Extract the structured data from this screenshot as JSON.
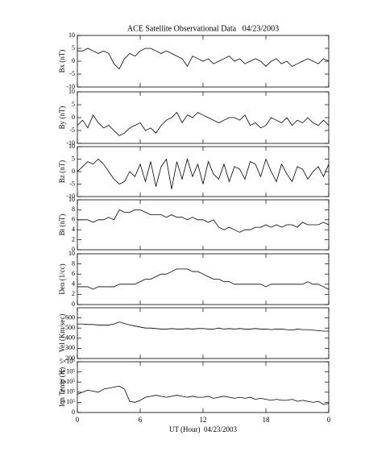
{
  "chart_data": [
    {
      "type": "line",
      "title": "ACE Satellite Observational Data   04/23/2003",
      "ylabel": "Bx (nT)",
      "color": "#000000",
      "x": [
        0,
        0.5,
        1,
        1.5,
        2,
        2.5,
        3,
        3.5,
        4,
        4.5,
        5,
        5.5,
        6,
        6.5,
        7,
        7.5,
        8,
        8.5,
        9,
        9.5,
        10,
        10.5,
        11,
        11.5,
        12,
        12.5,
        13,
        13.5,
        14,
        14.5,
        15,
        15.5,
        16,
        16.5,
        17,
        17.5,
        18,
        18.5,
        19,
        19.5,
        20,
        20.5,
        21,
        21.5,
        22,
        22.5,
        23,
        23.5,
        24
      ],
      "values": [
        4,
        4,
        5,
        4,
        3,
        4,
        3,
        -1,
        -3,
        1,
        3,
        2,
        4,
        5,
        5,
        4,
        3,
        4,
        3,
        2,
        1,
        -2,
        2,
        1,
        0,
        1,
        -1,
        0,
        1,
        2,
        0,
        1,
        -1,
        0,
        1,
        0,
        -2,
        0,
        1,
        -1,
        0,
        -2,
        -1,
        0,
        1,
        0,
        -1,
        1,
        0
      ],
      "xlim": [
        0,
        24
      ],
      "xticks": [
        0,
        6,
        12,
        18,
        {
          "value": 24,
          "label": "0"
        }
      ],
      "ylim": [
        -10,
        10
      ],
      "yticks": [
        -10,
        -5,
        0,
        5,
        10
      ]
    },
    {
      "type": "line",
      "ylabel": "By (nT)",
      "color": "#000000",
      "x": [
        0,
        0.5,
        1,
        1.5,
        2,
        2.5,
        3,
        3.5,
        4,
        4.5,
        5,
        5.5,
        6,
        6.5,
        7,
        7.5,
        8,
        8.5,
        9,
        9.5,
        10,
        10.5,
        11,
        11.5,
        12,
        12.5,
        13,
        13.5,
        14,
        14.5,
        15,
        15.5,
        16,
        16.5,
        17,
        17.5,
        18,
        18.5,
        19,
        19.5,
        20,
        20.5,
        21,
        21.5,
        22,
        22.5,
        23,
        23.5,
        24
      ],
      "values": [
        -3,
        -1,
        -4,
        1,
        -2,
        -4,
        -3,
        -5,
        -7,
        -6,
        -4,
        -3,
        -2,
        -5,
        -4,
        -6,
        -3,
        -1,
        0,
        2,
        -2,
        1,
        0,
        2,
        1,
        0,
        -1,
        -2,
        -1,
        0,
        0,
        -1,
        1,
        -3,
        -2,
        -4,
        -3,
        0,
        -1,
        -2,
        0,
        -3,
        -1,
        -2,
        0,
        -2,
        -3,
        -1,
        -3
      ],
      "xlim": [
        0,
        24
      ],
      "xticks": [
        0,
        6,
        12,
        18,
        {
          "value": 24,
          "label": "0"
        }
      ],
      "ylim": [
        -10,
        10
      ],
      "yticks": [
        -10,
        -5,
        0,
        5,
        10
      ]
    },
    {
      "type": "line",
      "ylabel": "Bz (nT)",
      "color": "#000000",
      "x": [
        0,
        0.5,
        1,
        1.5,
        2,
        2.5,
        3,
        3.5,
        4,
        4.5,
        5,
        5.5,
        6,
        6.5,
        7,
        7.5,
        8,
        8.5,
        9,
        9.5,
        10,
        10.5,
        11,
        11.5,
        12,
        12.5,
        13,
        13.5,
        14,
        14.5,
        15,
        15.5,
        16,
        16.5,
        17,
        17.5,
        18,
        18.5,
        19,
        19.5,
        20,
        20.5,
        21,
        21.5,
        22,
        22.5,
        23,
        23.5,
        24
      ],
      "values": [
        0,
        2,
        4,
        3,
        5,
        3,
        0,
        -3,
        -5,
        -4,
        0,
        -2,
        3,
        -4,
        4,
        -6,
        2,
        5,
        -7,
        4,
        -3,
        5,
        -2,
        3,
        -5,
        4,
        -1,
        -3,
        3,
        -4,
        2,
        1,
        -3,
        4,
        3,
        -2,
        5,
        0,
        -4,
        3,
        -1,
        -4,
        2,
        1,
        -3,
        0,
        2,
        -2,
        3
      ],
      "xlim": [
        0,
        24
      ],
      "xticks": [
        0,
        6,
        12,
        18,
        {
          "value": 24,
          "label": "0"
        }
      ],
      "ylim": [
        -10,
        10
      ],
      "yticks": [
        -10,
        -5,
        0,
        5,
        10
      ]
    },
    {
      "type": "line",
      "ylabel": "Bt (nT)",
      "color": "#000000",
      "x": [
        0,
        0.5,
        1,
        1.5,
        2,
        2.5,
        3,
        3.5,
        4,
        4.5,
        5,
        5.5,
        6,
        6.5,
        7,
        7.5,
        8,
        8.5,
        9,
        9.5,
        10,
        10.5,
        11,
        11.5,
        12,
        12.5,
        13,
        13.5,
        14,
        14.5,
        15,
        15.5,
        16,
        16.5,
        17,
        17.5,
        18,
        18.5,
        19,
        19.5,
        20,
        20.5,
        21,
        21.5,
        22,
        22.5,
        23,
        23.5,
        24
      ],
      "values": [
        6,
        6,
        6,
        5.5,
        6,
        6,
        6.5,
        6,
        8,
        7.5,
        7.5,
        8,
        8,
        7.5,
        7,
        7,
        7,
        6.5,
        7,
        6.5,
        6.5,
        6,
        6.5,
        6,
        6,
        5.5,
        6,
        4.5,
        4,
        4.5,
        4,
        3.5,
        4,
        4,
        4.5,
        4.5,
        5,
        4.5,
        5,
        4.5,
        5,
        5,
        4.5,
        5.5,
        5,
        5,
        5,
        5.5,
        5
      ],
      "xlim": [
        0,
        24
      ],
      "xticks": [
        0,
        6,
        12,
        18,
        {
          "value": 24,
          "label": "0"
        }
      ],
      "ylim": [
        0,
        10
      ],
      "yticks": [
        0,
        2,
        4,
        6,
        8,
        10
      ]
    },
    {
      "type": "line",
      "ylabel": "Den (1/cc)",
      "color": "#000000",
      "x": [
        0,
        0.5,
        1,
        1.5,
        2,
        2.5,
        3,
        3.5,
        4,
        4.5,
        5,
        5.5,
        6,
        6.5,
        7,
        7.5,
        8,
        8.5,
        9,
        9.5,
        10,
        10.5,
        11,
        11.5,
        12,
        12.5,
        13,
        13.5,
        14,
        14.5,
        15,
        15.5,
        16,
        16.5,
        17,
        17.5,
        18,
        18.5,
        19,
        19.5,
        20,
        20.5,
        21,
        21.5,
        22,
        22.5,
        23,
        23.5,
        24
      ],
      "values": [
        3.5,
        3.5,
        3.5,
        3,
        3.5,
        3.5,
        3.5,
        3.5,
        4,
        4,
        4,
        4,
        4.5,
        5,
        5,
        5.5,
        6,
        6,
        6.5,
        7,
        7,
        7,
        6.5,
        6.5,
        6,
        5.5,
        5,
        5,
        4.5,
        4.5,
        4,
        4,
        4,
        4,
        4,
        4,
        3.5,
        4,
        4,
        4,
        4,
        4,
        4,
        4,
        4.5,
        4,
        4,
        3.5,
        3
      ],
      "xlim": [
        0,
        24
      ],
      "xticks": [
        0,
        6,
        12,
        18,
        {
          "value": 24,
          "label": "0"
        }
      ],
      "ylim": [
        0,
        10
      ],
      "yticks": [
        0,
        2,
        4,
        6,
        8,
        10
      ]
    },
    {
      "type": "line",
      "ylabel": "Vel (Km/sec)",
      "color": "#000000",
      "x": [
        0,
        0.5,
        1,
        1.5,
        2,
        2.5,
        3,
        3.5,
        4,
        4.5,
        5,
        5.5,
        6,
        6.5,
        7,
        7.5,
        8,
        8.5,
        9,
        9.5,
        10,
        10.5,
        11,
        11.5,
        12,
        12.5,
        13,
        13.5,
        14,
        14.5,
        15,
        15.5,
        16,
        16.5,
        17,
        17.5,
        18,
        18.5,
        19,
        19.5,
        20,
        20.5,
        21,
        21.5,
        22,
        22.5,
        23,
        23.5,
        24
      ],
      "values": [
        540,
        540,
        535,
        535,
        530,
        530,
        530,
        540,
        560,
        545,
        530,
        520,
        510,
        500,
        500,
        495,
        490,
        490,
        495,
        490,
        490,
        495,
        490,
        495,
        495,
        490,
        490,
        500,
        490,
        495,
        490,
        495,
        490,
        490,
        495,
        490,
        490,
        485,
        490,
        490,
        485,
        480,
        490,
        485,
        485,
        480,
        475,
        470,
        470
      ],
      "xlim": [
        0,
        24
      ],
      "xticks": [
        0,
        6,
        12,
        18,
        {
          "value": 24,
          "label": "0"
        }
      ],
      "ylim": [
        200,
        700
      ],
      "yticks": [
        200,
        300,
        400,
        500,
        600
      ]
    },
    {
      "type": "line",
      "ylabel": "Ion Temp (K)",
      "xlabel": "UT (Hour)  04/23/2003",
      "color": "#000000",
      "x": [
        0,
        0.5,
        1,
        1.5,
        2,
        2.5,
        3,
        3.5,
        4,
        4.5,
        5,
        5.5,
        6,
        6.5,
        7,
        7.5,
        8,
        8.5,
        9,
        9.5,
        10,
        10.5,
        11,
        11.5,
        12,
        12.5,
        13,
        13.5,
        14,
        14.5,
        15,
        15.5,
        16,
        16.5,
        17,
        17.5,
        18,
        18.5,
        19,
        19.5,
        20,
        20.5,
        21,
        21.5,
        22,
        22.5,
        23,
        23.5,
        24
      ],
      "values": [
        180000,
        200000,
        220000,
        210000,
        200000,
        230000,
        240000,
        250000,
        260000,
        230000,
        110000,
        100000,
        120000,
        150000,
        160000,
        170000,
        160000,
        150000,
        160000,
        170000,
        160000,
        150000,
        160000,
        150000,
        150000,
        160000,
        140000,
        150000,
        160000,
        150000,
        140000,
        150000,
        140000,
        150000,
        130000,
        140000,
        130000,
        120000,
        130000,
        120000,
        120000,
        130000,
        110000,
        120000,
        110000,
        100000,
        110000,
        80000,
        90000
      ],
      "xlim": [
        0,
        24
      ],
      "xticks": [
        0,
        6,
        12,
        18,
        {
          "value": 24,
          "label": "0"
        }
      ],
      "ylim": [
        0,
        500000
      ],
      "yticks": [
        0,
        {
          "value": 100000,
          "label": "1×10⁵"
        },
        {
          "value": 200000,
          "label": "2×10⁵"
        },
        {
          "value": 300000,
          "label": "3×10⁵"
        },
        {
          "value": 400000,
          "label": "4×10⁵"
        },
        {
          "value": 500000,
          "label": "5×10⁵"
        }
      ]
    }
  ]
}
